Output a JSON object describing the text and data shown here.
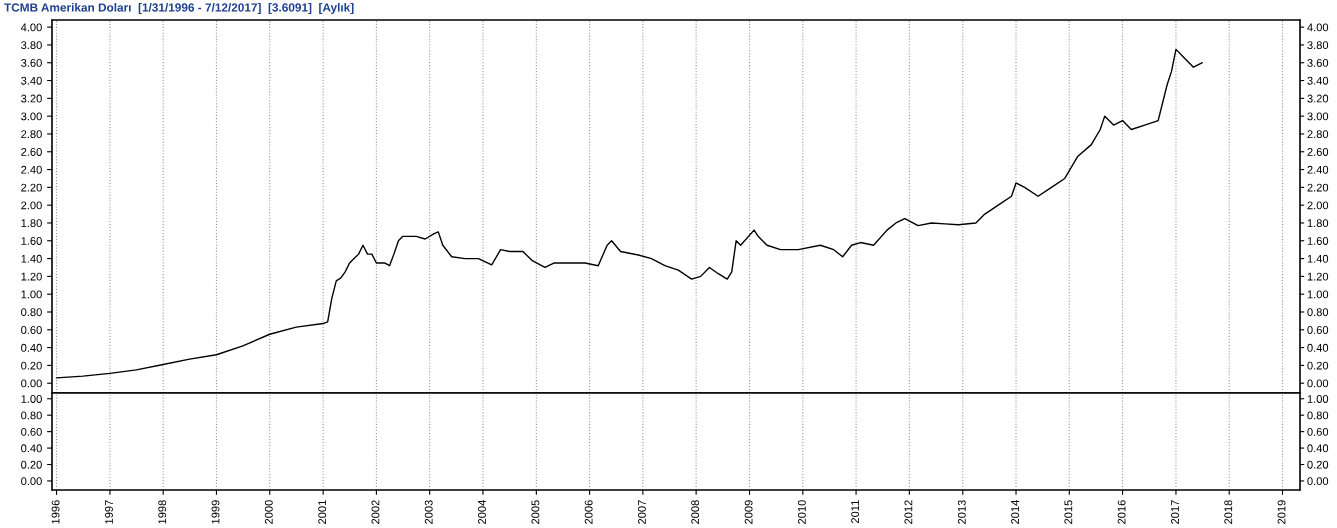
{
  "chart_data": [
    {
      "type": "line",
      "title": "TCMB Amerikan Doları  [1/31/1996 - 7/12/2017]  [3.6091]  [Aylık]",
      "tick_labels": "y",
      "grid": "x",
      "xlim": [
        "1995-12",
        "2019-05"
      ],
      "xticks": [
        "1996",
        "1997",
        "1998",
        "1999",
        "2000",
        "2001",
        "2002",
        "2003",
        "2004",
        "2005",
        "2006",
        "2007",
        "2008",
        "2009",
        "2010",
        "2011",
        "2012",
        "2013",
        "2014",
        "2015",
        "2016",
        "2017",
        "2018",
        "2019"
      ],
      "ylim": [
        -0.11,
        4.08
      ],
      "yticks": [
        {
          "value": 0,
          "label": "0.00"
        },
        {
          "value": 0.2,
          "label": "0.20"
        },
        {
          "value": 0.4,
          "label": "0.40"
        },
        {
          "value": 0.6,
          "label": "0.60"
        },
        {
          "value": 0.8,
          "label": "0.80"
        },
        {
          "value": 1,
          "label": "1.00"
        },
        {
          "value": 1.2,
          "label": "1.20"
        },
        {
          "value": 1.4,
          "label": "1.40"
        },
        {
          "value": 1.6,
          "label": "1.60"
        },
        {
          "value": 1.8,
          "label": "1.80"
        },
        {
          "value": 2,
          "label": "2.00"
        },
        {
          "value": 2.2,
          "label": "2.20"
        },
        {
          "value": 2.4,
          "label": "2.40"
        },
        {
          "value": 2.6,
          "label": "2.60"
        },
        {
          "value": 2.8,
          "label": "2.80"
        },
        {
          "value": 3,
          "label": "3.00"
        },
        {
          "value": 3.2,
          "label": "3.20"
        },
        {
          "value": 3.4,
          "label": "3.40"
        },
        {
          "value": 3.6,
          "label": "3.60"
        },
        {
          "value": 3.8,
          "label": "3.80"
        },
        {
          "value": 4,
          "label": "4.00"
        }
      ],
      "y2lim": [
        -0.11,
        4.08
      ],
      "y2ticks": [
        {
          "value": 0,
          "label": "0.00"
        },
        {
          "value": 0.2,
          "label": "0.20"
        },
        {
          "value": 0.4,
          "label": "0.40"
        },
        {
          "value": 0.6,
          "label": "0.60"
        },
        {
          "value": 0.8,
          "label": "0.80"
        },
        {
          "value": 1,
          "label": "1.00"
        },
        {
          "value": 1.2,
          "label": "1.20"
        },
        {
          "value": 1.4,
          "label": "1.40"
        },
        {
          "value": 1.6,
          "label": "1.60"
        },
        {
          "value": 1.8,
          "label": "1.80"
        },
        {
          "value": 2,
          "label": "2.00"
        },
        {
          "value": 2.2,
          "label": "2.20"
        },
        {
          "value": 2.4,
          "label": "2.40"
        },
        {
          "value": 2.6,
          "label": "2.60"
        },
        {
          "value": 2.8,
          "label": "2.80"
        },
        {
          "value": 3,
          "label": "3.00"
        },
        {
          "value": 3.2,
          "label": "3.20"
        },
        {
          "value": 3.4,
          "label": "3.40"
        },
        {
          "value": 3.6,
          "label": "3.60"
        },
        {
          "value": 3.8,
          "label": "3.80"
        },
        {
          "value": 4,
          "label": "4.00"
        }
      ],
      "series": [
        {
          "color": "#000000",
          "x": [
            "1996-01",
            "1996-07",
            "1997-01",
            "1997-07",
            "1998-01",
            "1998-07",
            "1999-01",
            "1999-07",
            "2000-01",
            "2000-07",
            "2001-01",
            "2001-02",
            "2001-03",
            "2001-04",
            "2001-05",
            "2001-06",
            "2001-07",
            "2001-08",
            "2001-09",
            "2001-10",
            "2001-11",
            "2001-12",
            "2002-01",
            "2002-03",
            "2002-04",
            "2002-05",
            "2002-06",
            "2002-07",
            "2002-10",
            "2002-12",
            "2003-02",
            "2003-03",
            "2003-04",
            "2003-06",
            "2003-09",
            "2003-12",
            "2004-03",
            "2004-05",
            "2004-07",
            "2004-10",
            "2004-12",
            "2005-03",
            "2005-05",
            "2005-09",
            "2005-12",
            "2006-03",
            "2006-05",
            "2006-06",
            "2006-08",
            "2006-12",
            "2007-03",
            "2007-06",
            "2007-09",
            "2007-12",
            "2008-02",
            "2008-04",
            "2008-06",
            "2008-08",
            "2008-09",
            "2008-10",
            "2008-11",
            "2009-02",
            "2009-03",
            "2009-05",
            "2009-08",
            "2009-12",
            "2010-05",
            "2010-08",
            "2010-10",
            "2010-12",
            "2011-02",
            "2011-05",
            "2011-08",
            "2011-10",
            "2011-12",
            "2012-03",
            "2012-06",
            "2012-09",
            "2012-12",
            "2013-04",
            "2013-06",
            "2013-09",
            "2013-12",
            "2014-01",
            "2014-03",
            "2014-06",
            "2014-09",
            "2014-12",
            "2015-03",
            "2015-06",
            "2015-08",
            "2015-09",
            "2015-11",
            "2016-01",
            "2016-03",
            "2016-06",
            "2016-09",
            "2016-11",
            "2016-12",
            "2017-01",
            "2017-03",
            "2017-05",
            "2017-07"
          ],
          "values": [
            0.06,
            0.08,
            0.11,
            0.15,
            0.21,
            0.27,
            0.32,
            0.42,
            0.55,
            0.63,
            0.67,
            0.69,
            0.95,
            1.15,
            1.18,
            1.25,
            1.35,
            1.4,
            1.45,
            1.55,
            1.45,
            1.45,
            1.35,
            1.35,
            1.32,
            1.45,
            1.6,
            1.65,
            1.65,
            1.62,
            1.68,
            1.7,
            1.55,
            1.42,
            1.4,
            1.4,
            1.33,
            1.5,
            1.48,
            1.48,
            1.38,
            1.3,
            1.35,
            1.35,
            1.35,
            1.32,
            1.55,
            1.6,
            1.48,
            1.44,
            1.4,
            1.32,
            1.27,
            1.17,
            1.2,
            1.3,
            1.23,
            1.17,
            1.25,
            1.6,
            1.55,
            1.72,
            1.65,
            1.55,
            1.5,
            1.5,
            1.55,
            1.5,
            1.42,
            1.55,
            1.58,
            1.55,
            1.72,
            1.8,
            1.85,
            1.77,
            1.8,
            1.79,
            1.78,
            1.8,
            1.9,
            2.0,
            2.1,
            2.25,
            2.2,
            2.1,
            2.2,
            2.3,
            2.55,
            2.68,
            2.85,
            3.0,
            2.9,
            2.95,
            2.85,
            2.9,
            2.95,
            3.35,
            3.5,
            3.75,
            3.65,
            3.55,
            3.6
          ]
        }
      ]
    },
    {
      "type": "line",
      "grid": "x",
      "xlim": [
        "1995-12",
        "2019-05"
      ],
      "xticks": [
        "1996",
        "1997",
        "1998",
        "1999",
        "2000",
        "2001",
        "2002",
        "2003",
        "2004",
        "2005",
        "2006",
        "2007",
        "2008",
        "2009",
        "2010",
        "2011",
        "2012",
        "2013",
        "2014",
        "2015",
        "2016",
        "2017",
        "2018",
        "2019"
      ],
      "ylim": [
        -0.11,
        1.07
      ],
      "yticks": [
        {
          "value": 0,
          "label": "0.00"
        },
        {
          "value": 0.2,
          "label": "0.20"
        },
        {
          "value": 0.4,
          "label": "0.40"
        },
        {
          "value": 0.6,
          "label": "0.60"
        },
        {
          "value": 0.8,
          "label": "0.80"
        },
        {
          "value": 1,
          "label": "1.00"
        }
      ],
      "y2lim": [
        -0.11,
        1.07
      ],
      "y2ticks": [
        {
          "value": 0,
          "label": "0.00"
        },
        {
          "value": 0.2,
          "label": "0.20"
        },
        {
          "value": 0.4,
          "label": "0.40"
        },
        {
          "value": 0.6,
          "label": "0.60"
        },
        {
          "value": 0.8,
          "label": "0.80"
        },
        {
          "value": 1,
          "label": "1.00"
        }
      ]
    }
  ]
}
